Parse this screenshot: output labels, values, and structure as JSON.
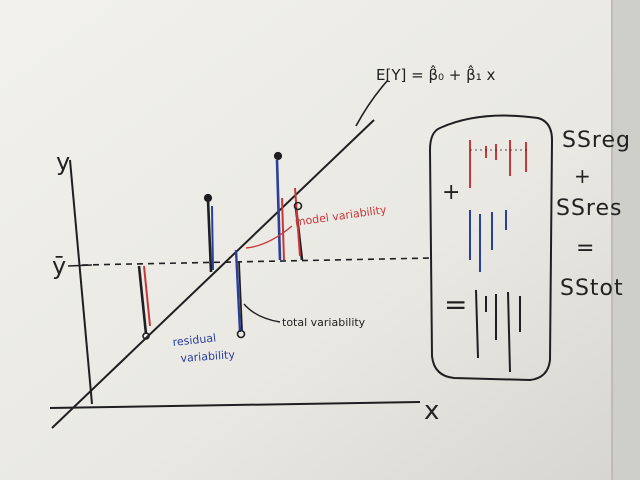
{
  "board": {
    "colors": {
      "board": "#ecebe5",
      "ink_black": "#1f1f22",
      "ink_red": "#c8383a",
      "ink_blue": "#2a3f9a"
    },
    "axis": {
      "y_label": "y",
      "x_label": "x",
      "ybar_label": "ȳ"
    },
    "model_equation": "E[Y] = β̂₀ + β̂₁ x",
    "annotations": {
      "model_variability": "model variability",
      "total_variability": "total variability",
      "residual_line1": "residual",
      "residual_line2": "variability"
    },
    "right_side": {
      "ss_reg": "SSreg",
      "plus": "+",
      "ss_res": "SSres",
      "equals": "=",
      "ss_tot": "SStot"
    },
    "box": {
      "plus": "+",
      "equals": "="
    }
  }
}
